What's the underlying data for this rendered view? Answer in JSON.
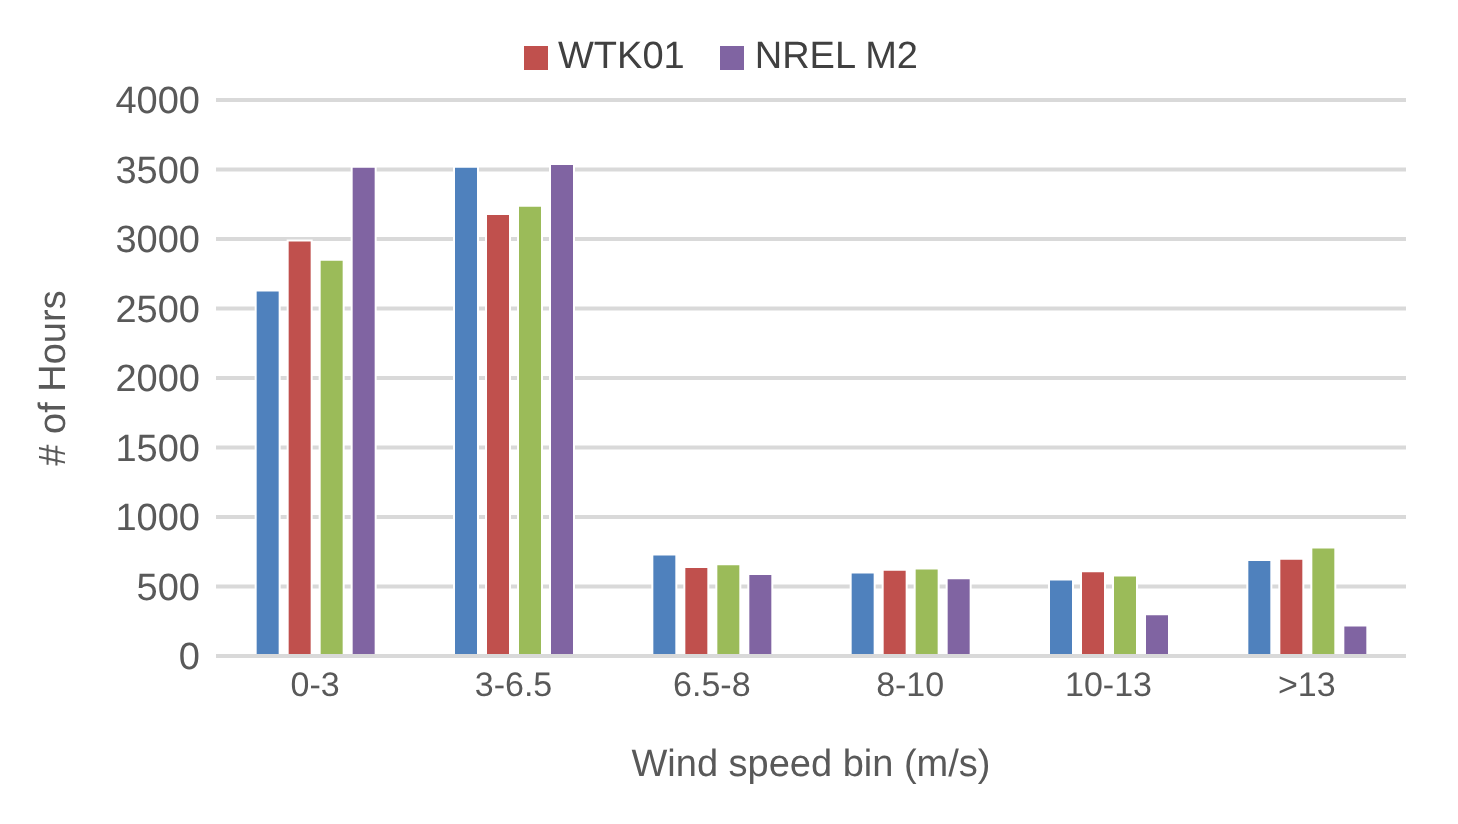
{
  "chart_data": {
    "type": "bar",
    "xlabel": "Wind speed bin (m/s)",
    "ylabel": "# of Hours",
    "categories": [
      "0-3",
      "3-6.5",
      "6.5-8",
      "8-10",
      "10-13",
      ">13"
    ],
    "series": [
      {
        "color": "#4f81bd",
        "values": [
          2630,
          3520,
          730,
          600,
          550,
          690
        ]
      },
      {
        "name": "WTK01",
        "color": "#c0504d",
        "values": [
          2990,
          3180,
          640,
          620,
          610,
          700
        ]
      },
      {
        "color": "#9bbb59",
        "values": [
          2850,
          3240,
          660,
          630,
          580,
          780
        ]
      },
      {
        "name": "NREL M2",
        "color": "#8064a2",
        "values": [
          3520,
          3540,
          590,
          560,
          300,
          220
        ]
      }
    ],
    "ylim": [
      0,
      4000
    ],
    "yticks": [
      0,
      500,
      1000,
      1500,
      2000,
      2500,
      3000,
      3500,
      4000
    ],
    "grid": "y",
    "legend": "top"
  }
}
